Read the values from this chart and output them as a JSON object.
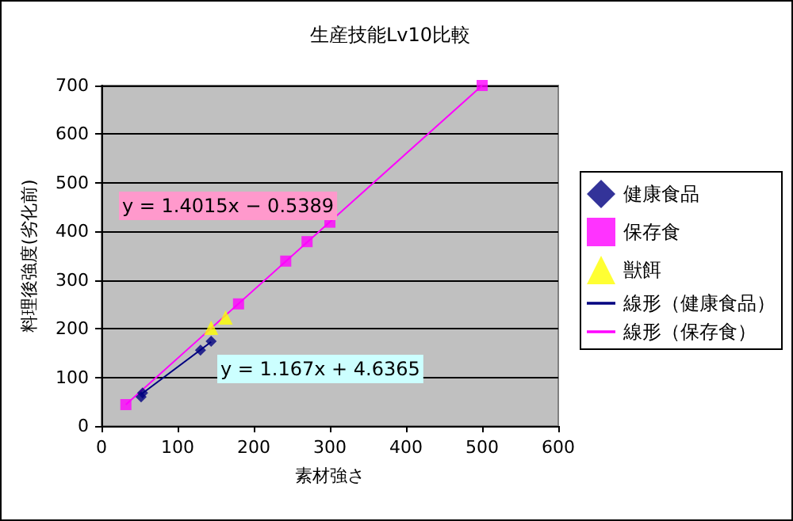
{
  "chart_data": {
    "type": "scatter",
    "title": "生産技能Lv10比較",
    "xlabel": "素材強さ",
    "ylabel": "料理後強度(劣化前)",
    "xlim": [
      0,
      600
    ],
    "xticks": [
      0,
      100,
      200,
      300,
      400,
      500,
      600
    ],
    "ylim": [
      0,
      700
    ],
    "yticks": [
      0,
      100,
      200,
      300,
      400,
      500,
      600,
      700
    ],
    "grid": "y",
    "legend": "right",
    "series": [
      {
        "name": "健康食品",
        "color": "#000080",
        "marker": "diamond",
        "x": [
          52,
          54,
          130,
          144
        ],
        "values": [
          60,
          68,
          156,
          174
        ]
      },
      {
        "name": "保存食",
        "color": "#ff00ff",
        "marker": "square",
        "x": [
          32,
          180,
          242,
          270,
          300,
          500
        ],
        "values": [
          44,
          251,
          339,
          379,
          419,
          700
        ]
      },
      {
        "name": "獣餌",
        "color": "#ffff00",
        "marker": "triangle",
        "x": [
          144,
          163
        ],
        "values": [
          202,
          223
        ]
      },
      {
        "name": "線形（健康食品）",
        "type": "line",
        "color": "#000080",
        "marker": "none",
        "x": [
          52,
          144
        ],
        "values": [
          65,
          173
        ]
      },
      {
        "name": "線形（保存食）",
        "type": "line",
        "color": "#ff00ff",
        "marker": "none",
        "x": [
          32,
          500
        ],
        "values": [
          44,
          700
        ]
      }
    ],
    "annotations": [
      "y = 1.4015x − 0.5389",
      "y = 1.167x + 4.6365"
    ]
  }
}
